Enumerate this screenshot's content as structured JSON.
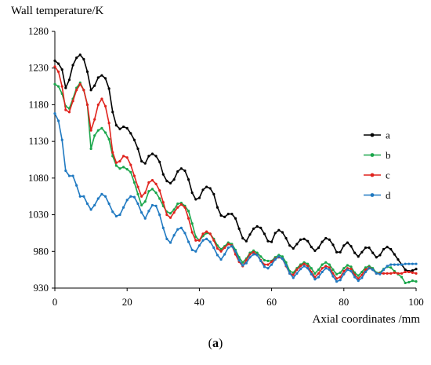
{
  "chart_data": {
    "type": "line",
    "title": "",
    "ylabel": "Wall temperature/K",
    "xlabel": "Axial coordinates /mm",
    "caption": {
      "prefix": "(",
      "letter": "a",
      "suffix": ")"
    },
    "xlim": [
      0,
      100
    ],
    "ylim": [
      930,
      1280
    ],
    "xticks": [
      0,
      20,
      40,
      60,
      80,
      100
    ],
    "yticks": [
      930,
      980,
      1030,
      1080,
      1130,
      1180,
      1230,
      1280
    ],
    "grid": false,
    "legend_position": "right",
    "series": [
      {
        "name": "a",
        "color": "#000000",
        "x": [
          0,
          1,
          2,
          3,
          4,
          5,
          6,
          7,
          8,
          9,
          10,
          11,
          12,
          13,
          14,
          15,
          16,
          17,
          18,
          19,
          20,
          21,
          22,
          23,
          24,
          25,
          26,
          27,
          28,
          29,
          30,
          31,
          32,
          33,
          34,
          35,
          36,
          37,
          38,
          39,
          40,
          41,
          42,
          43,
          44,
          45,
          46,
          47,
          48,
          49,
          50,
          51,
          52,
          53,
          54,
          55,
          56,
          57,
          58,
          59,
          60,
          61,
          62,
          63,
          64,
          65,
          66,
          67,
          68,
          69,
          70,
          71,
          72,
          73,
          74,
          75,
          76,
          77,
          78,
          79,
          80,
          81,
          82,
          83,
          84,
          85,
          86,
          87,
          88,
          89,
          90,
          91,
          92,
          93,
          94,
          95,
          96,
          97,
          98,
          99,
          100
        ],
        "y": [
          1240,
          1236,
          1228,
          1203,
          1214,
          1234,
          1244,
          1248,
          1242,
          1225,
          1200,
          1206,
          1217,
          1220,
          1216,
          1202,
          1170,
          1152,
          1147,
          1150,
          1148,
          1141,
          1132,
          1120,
          1103,
          1100,
          1110,
          1113,
          1110,
          1102,
          1085,
          1076,
          1073,
          1078,
          1089,
          1093,
          1090,
          1078,
          1060,
          1051,
          1053,
          1064,
          1068,
          1066,
          1058,
          1040,
          1029,
          1027,
          1031,
          1031,
          1025,
          1011,
          998,
          994,
          1003,
          1011,
          1014,
          1012,
          1004,
          994,
          993,
          1005,
          1009,
          1006,
          998,
          988,
          984,
          990,
          996,
          997,
          994,
          986,
          981,
          985,
          993,
          998,
          996,
          989,
          979,
          979,
          988,
          992,
          987,
          978,
          973,
          979,
          985,
          985,
          978,
          972,
          975,
          983,
          986,
          983,
          976,
          969,
          962,
          955,
          953,
          954,
          956
        ]
      },
      {
        "name": "b",
        "color": "#1aa64b",
        "x": [
          0,
          1,
          2,
          3,
          4,
          5,
          6,
          7,
          8,
          9,
          10,
          11,
          12,
          13,
          14,
          15,
          16,
          17,
          18,
          19,
          20,
          21,
          22,
          23,
          24,
          25,
          26,
          27,
          28,
          29,
          30,
          31,
          32,
          33,
          34,
          35,
          36,
          37,
          38,
          39,
          40,
          41,
          42,
          43,
          44,
          45,
          46,
          47,
          48,
          49,
          50,
          51,
          52,
          53,
          54,
          55,
          56,
          57,
          58,
          59,
          60,
          61,
          62,
          63,
          64,
          65,
          66,
          67,
          68,
          69,
          70,
          71,
          72,
          73,
          74,
          75,
          76,
          77,
          78,
          79,
          80,
          81,
          82,
          83,
          84,
          85,
          86,
          87,
          88,
          89,
          90,
          91,
          92,
          93,
          94,
          95,
          96,
          97,
          98,
          99,
          100
        ],
        "y": [
          1208,
          1205,
          1195,
          1178,
          1175,
          1188,
          1203,
          1210,
          1200,
          1180,
          1120,
          1138,
          1145,
          1148,
          1142,
          1133,
          1110,
          1097,
          1093,
          1095,
          1092,
          1088,
          1074,
          1058,
          1043,
          1048,
          1062,
          1065,
          1060,
          1052,
          1042,
          1034,
          1032,
          1037,
          1045,
          1046,
          1042,
          1035,
          1018,
          1000,
          995,
          1001,
          1005,
          1004,
          997,
          988,
          983,
          987,
          992,
          990,
          982,
          972,
          965,
          970,
          978,
          981,
          978,
          973,
          968,
          967,
          967,
          972,
          975,
          973,
          965,
          953,
          951,
          957,
          962,
          965,
          963,
          957,
          950,
          955,
          962,
          965,
          962,
          955,
          949,
          951,
          957,
          961,
          959,
          951,
          947,
          952,
          958,
          960,
          957,
          951,
          951,
          956,
          959,
          958,
          953,
          949,
          945,
          937,
          938,
          940,
          939
        ]
      },
      {
        "name": "c",
        "color": "#e0221c",
        "x": [
          0,
          1,
          2,
          3,
          4,
          5,
          6,
          7,
          8,
          9,
          10,
          11,
          12,
          13,
          14,
          15,
          16,
          17,
          18,
          19,
          20,
          21,
          22,
          23,
          24,
          25,
          26,
          27,
          28,
          29,
          30,
          31,
          32,
          33,
          34,
          35,
          36,
          37,
          38,
          39,
          40,
          41,
          42,
          43,
          44,
          45,
          46,
          47,
          48,
          49,
          50,
          51,
          52,
          53,
          54,
          55,
          56,
          57,
          58,
          59,
          60,
          61,
          62,
          63,
          64,
          65,
          66,
          67,
          68,
          69,
          70,
          71,
          72,
          73,
          74,
          75,
          76,
          77,
          78,
          79,
          80,
          81,
          82,
          83,
          84,
          85,
          86,
          87,
          88,
          89,
          90,
          91,
          92,
          93,
          94,
          95,
          96,
          97,
          98,
          99,
          100
        ],
        "y": [
          1232,
          1225,
          1205,
          1173,
          1170,
          1185,
          1200,
          1208,
          1200,
          1180,
          1145,
          1160,
          1180,
          1188,
          1178,
          1155,
          1115,
          1101,
          1103,
          1110,
          1108,
          1098,
          1083,
          1068,
          1055,
          1060,
          1074,
          1077,
          1072,
          1063,
          1047,
          1030,
          1026,
          1033,
          1040,
          1044,
          1040,
          1025,
          1006,
          995,
          995,
          1004,
          1007,
          1004,
          995,
          984,
          980,
          985,
          990,
          988,
          976,
          966,
          960,
          968,
          976,
          979,
          975,
          968,
          962,
          962,
          966,
          970,
          972,
          970,
          960,
          950,
          948,
          955,
          960,
          963,
          960,
          952,
          945,
          950,
          957,
          960,
          958,
          950,
          943,
          945,
          953,
          957,
          956,
          948,
          943,
          948,
          955,
          958,
          955,
          950,
          950,
          950,
          950,
          950,
          951,
          950,
          950,
          952,
          952,
          951,
          950
        ]
      },
      {
        "name": "d",
        "color": "#1f79c1",
        "x": [
          0,
          1,
          2,
          3,
          4,
          5,
          6,
          7,
          8,
          9,
          10,
          11,
          12,
          13,
          14,
          15,
          16,
          17,
          18,
          19,
          20,
          21,
          22,
          23,
          24,
          25,
          26,
          27,
          28,
          29,
          30,
          31,
          32,
          33,
          34,
          35,
          36,
          37,
          38,
          39,
          40,
          41,
          42,
          43,
          44,
          45,
          46,
          47,
          48,
          49,
          50,
          51,
          52,
          53,
          54,
          55,
          56,
          57,
          58,
          59,
          60,
          61,
          62,
          63,
          64,
          65,
          66,
          67,
          68,
          69,
          70,
          71,
          72,
          73,
          74,
          75,
          76,
          77,
          78,
          79,
          80,
          81,
          82,
          83,
          84,
          85,
          86,
          87,
          88,
          89,
          90,
          91,
          92,
          93,
          94,
          95,
          96,
          97,
          98,
          99,
          100
        ],
        "y": [
          1168,
          1158,
          1132,
          1090,
          1083,
          1083,
          1070,
          1055,
          1055,
          1045,
          1037,
          1043,
          1052,
          1058,
          1055,
          1045,
          1034,
          1028,
          1030,
          1040,
          1050,
          1055,
          1054,
          1045,
          1033,
          1025,
          1035,
          1043,
          1042,
          1030,
          1012,
          997,
          992,
          1002,
          1010,
          1012,
          1005,
          993,
          982,
          980,
          988,
          995,
          997,
          993,
          985,
          975,
          969,
          976,
          985,
          987,
          980,
          968,
          961,
          964,
          972,
          976,
          975,
          967,
          959,
          957,
          962,
          969,
          973,
          970,
          961,
          950,
          944,
          950,
          956,
          960,
          957,
          949,
          942,
          945,
          952,
          957,
          955,
          946,
          939,
          941,
          949,
          955,
          953,
          945,
          940,
          944,
          952,
          957,
          955,
          950,
          949,
          955,
          960,
          962,
          962,
          962,
          962,
          963,
          963,
          963,
          963
        ]
      }
    ]
  }
}
